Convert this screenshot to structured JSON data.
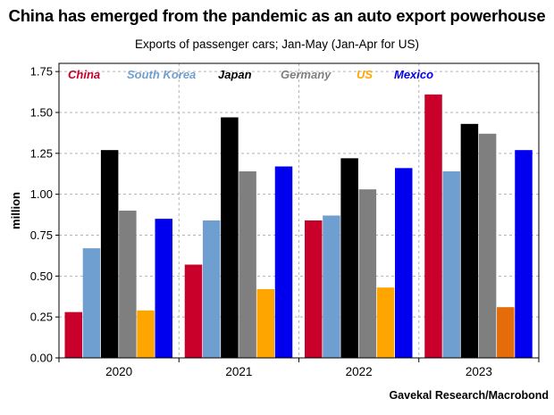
{
  "title": "China has emerged from the pandemic as an auto export powerhouse",
  "subtitle": "Exports of passenger cars; Jan-May (Jan-Apr for US)",
  "source": "Gavekal Research/Macrobond",
  "colors": {
    "China": "#c8002a",
    "South Korea": "#6f9fd1",
    "Japan": "#000000",
    "Germany": "#7f7f7f",
    "US": "#ffa500",
    "US_2023": "#e46c0a",
    "Mexico": "#0000ee"
  },
  "chart_data": {
    "type": "bar",
    "title": "China has emerged from the pandemic as an auto export powerhouse",
    "subtitle": "Exports of passenger cars; Jan-May (Jan-Apr for US)",
    "xlabel": "",
    "ylabel": "million",
    "ylim": [
      0,
      1.8
    ],
    "yticks": [
      "0.00",
      "0.25",
      "0.50",
      "0.75",
      "1.00",
      "1.25",
      "1.50",
      "1.75"
    ],
    "grid": true,
    "legend": "top, inside plot",
    "categories": [
      "2020",
      "2021",
      "2022",
      "2023"
    ],
    "series": [
      {
        "name": "China",
        "values": [
          0.28,
          0.57,
          0.84,
          1.61
        ]
      },
      {
        "name": "South Korea",
        "values": [
          0.67,
          0.84,
          0.87,
          1.14
        ]
      },
      {
        "name": "Japan",
        "values": [
          1.27,
          1.47,
          1.22,
          1.43
        ]
      },
      {
        "name": "Germany",
        "values": [
          0.9,
          1.14,
          1.03,
          1.37
        ]
      },
      {
        "name": "US",
        "values": [
          0.29,
          0.42,
          0.43,
          0.31
        ]
      },
      {
        "name": "Mexico",
        "values": [
          0.85,
          1.17,
          1.16,
          1.27
        ]
      }
    ]
  }
}
